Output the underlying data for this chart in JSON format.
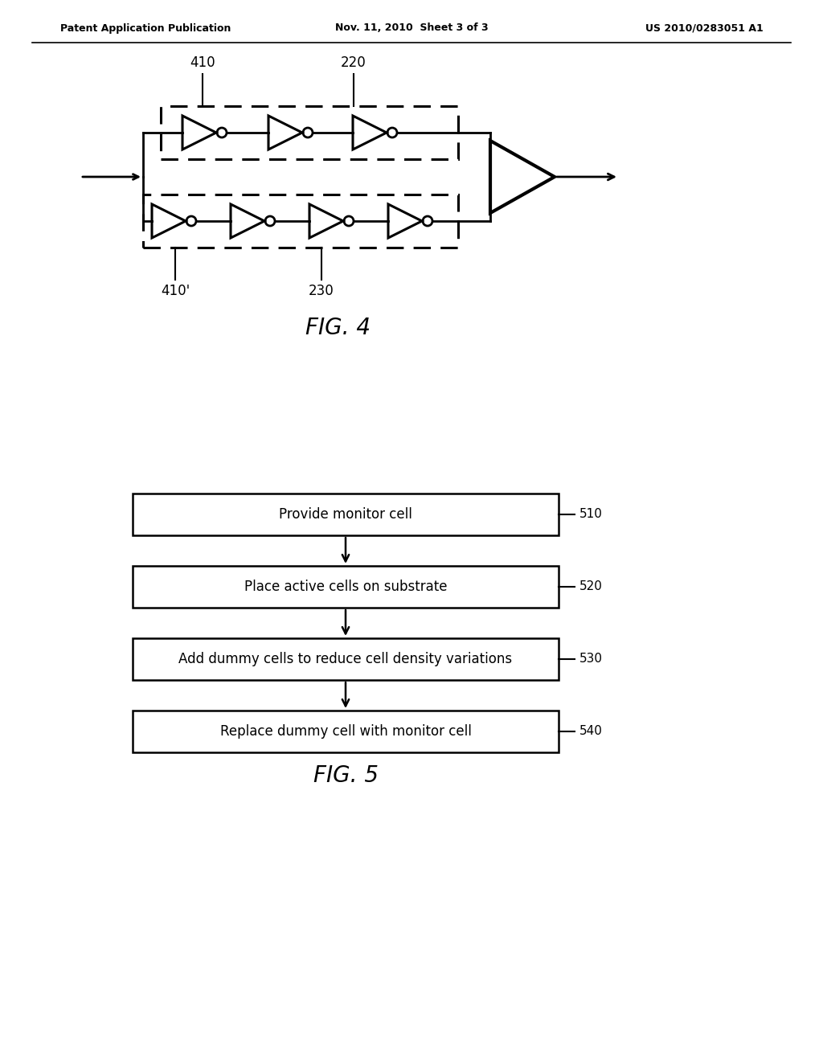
{
  "header_left": "Patent Application Publication",
  "header_mid": "Nov. 11, 2010  Sheet 3 of 3",
  "header_right": "US 2010/0283051 A1",
  "fig4_label": "FIG. 4",
  "fig5_label": "FIG. 5",
  "label_410": "410",
  "label_220": "220",
  "label_410p": "410'",
  "label_230": "230",
  "flowchart_steps": [
    "Provide monitor cell",
    "Place active cells on substrate",
    "Add dummy cells to reduce cell density variations",
    "Replace dummy cell with monitor cell"
  ],
  "flowchart_labels": [
    "510",
    "520",
    "530",
    "540"
  ],
  "bg_color": "#ffffff",
  "fg_color": "#000000"
}
